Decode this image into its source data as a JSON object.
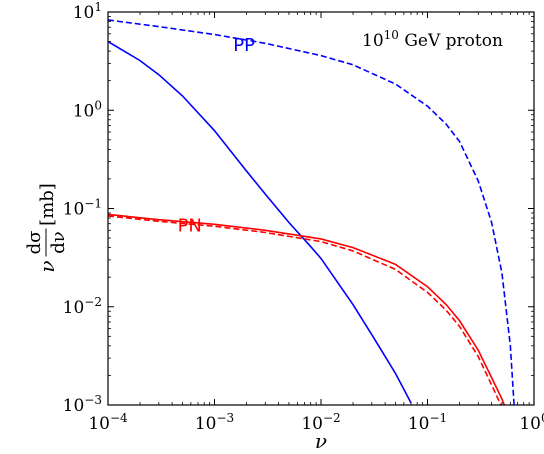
{
  "chart_data": {
    "type": "line",
    "title": "",
    "annotation": {
      "base": "10",
      "exp": "10",
      "rest": " GeV proton"
    },
    "xlabel": "ν",
    "ylabel": {
      "prefix": "ν",
      "num": "dσ",
      "den": "dν",
      "unit": "[mb]"
    },
    "xscale": "log",
    "yscale": "log",
    "xlim": [
      0.0001,
      1
    ],
    "ylim": [
      0.001,
      10
    ],
    "x_ticks": [
      {
        "value": 0.0001,
        "base": "10",
        "exp": "−4"
      },
      {
        "value": 0.001,
        "base": "10",
        "exp": "−3"
      },
      {
        "value": 0.01,
        "base": "10",
        "exp": "−2"
      },
      {
        "value": 0.1,
        "base": "10",
        "exp": "−1"
      },
      {
        "value": 1,
        "base": "10",
        "exp": "0"
      }
    ],
    "y_ticks": [
      {
        "value": 0.001,
        "base": "10",
        "exp": "−3"
      },
      {
        "value": 0.01,
        "base": "10",
        "exp": "−2"
      },
      {
        "value": 0.1,
        "base": "10",
        "exp": "−1"
      },
      {
        "value": 1,
        "base": "10",
        "exp": "0"
      },
      {
        "value": 10,
        "base": "10",
        "exp": "1"
      }
    ],
    "grid": false,
    "series_labels": [
      {
        "text": "PP",
        "color": "#0000ff",
        "x": 0.0015,
        "y": 4.0
      },
      {
        "text": "PN",
        "color": "#ff0000",
        "x": 0.00045,
        "y": 0.058
      }
    ],
    "series": [
      {
        "color": "#0000ff",
        "dash": "solid",
        "x": [
          0.0001,
          0.0002,
          0.0003,
          0.0005,
          0.001,
          0.002,
          0.003,
          0.005,
          0.008,
          0.01,
          0.02,
          0.03,
          0.05,
          0.07
        ],
        "y": [
          5.0,
          3.2,
          2.3,
          1.4,
          0.62,
          0.24,
          0.14,
          0.072,
          0.041,
          0.031,
          0.0105,
          0.0052,
          0.0021,
          0.00105
        ]
      },
      {
        "color": "#0000ff",
        "dash": "dashed",
        "x": [
          0.0001,
          0.0003,
          0.001,
          0.003,
          0.01,
          0.02,
          0.05,
          0.1,
          0.15,
          0.2,
          0.3,
          0.4,
          0.5,
          0.6,
          0.65
        ],
        "y": [
          8.3,
          7.1,
          5.9,
          4.8,
          3.6,
          2.9,
          1.85,
          1.1,
          0.72,
          0.48,
          0.19,
          0.072,
          0.022,
          0.004,
          0.001
        ]
      },
      {
        "color": "#ff0000",
        "dash": "solid",
        "x": [
          0.0001,
          0.0003,
          0.001,
          0.003,
          0.01,
          0.02,
          0.05,
          0.1,
          0.15,
          0.2,
          0.3,
          0.4,
          0.5,
          0.6
        ],
        "y": [
          0.087,
          0.077,
          0.069,
          0.06,
          0.049,
          0.04,
          0.027,
          0.016,
          0.0105,
          0.0072,
          0.0036,
          0.0019,
          0.00115,
          0.0007
        ]
      },
      {
        "color": "#ff0000",
        "dash": "dashed",
        "x": [
          0.0001,
          0.0003,
          0.001,
          0.003,
          0.01,
          0.02,
          0.05,
          0.1,
          0.15,
          0.2,
          0.3,
          0.4,
          0.5,
          0.6
        ],
        "y": [
          0.084,
          0.074,
          0.066,
          0.057,
          0.046,
          0.037,
          0.024,
          0.014,
          0.0092,
          0.0063,
          0.0031,
          0.0016,
          0.00095,
          0.0006
        ]
      }
    ]
  }
}
